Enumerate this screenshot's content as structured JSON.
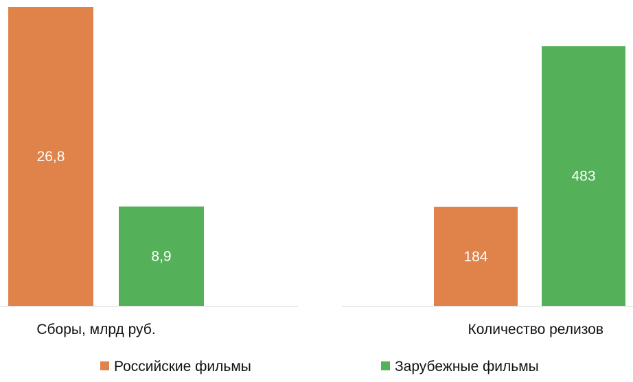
{
  "colors": {
    "russian": "#e0834a",
    "foreign": "#55b05a"
  },
  "chart_data": [
    {
      "type": "bar",
      "categories": [
        "Сборы, млрд руб."
      ],
      "series": [
        {
          "name": "Российские фильмы",
          "values": [
            26.8
          ],
          "labels": [
            "26,8"
          ]
        },
        {
          "name": "Зарубежные фильмы",
          "values": [
            8.9
          ],
          "labels": [
            "8,9"
          ]
        }
      ],
      "ylim": [
        0,
        26.8
      ]
    },
    {
      "type": "bar",
      "categories": [
        "Количество релизов"
      ],
      "series": [
        {
          "name": "Российские фильмы",
          "values": [
            184
          ],
          "labels": [
            "184"
          ]
        },
        {
          "name": "Зарубежные фильмы",
          "values": [
            483
          ],
          "labels": [
            "483"
          ]
        }
      ],
      "ylim": [
        0,
        556
      ]
    }
  ],
  "legend": [
    {
      "label": "Российские фильмы",
      "color_key": "russian"
    },
    {
      "label": "Зарубежные фильмы",
      "color_key": "foreign"
    }
  ]
}
